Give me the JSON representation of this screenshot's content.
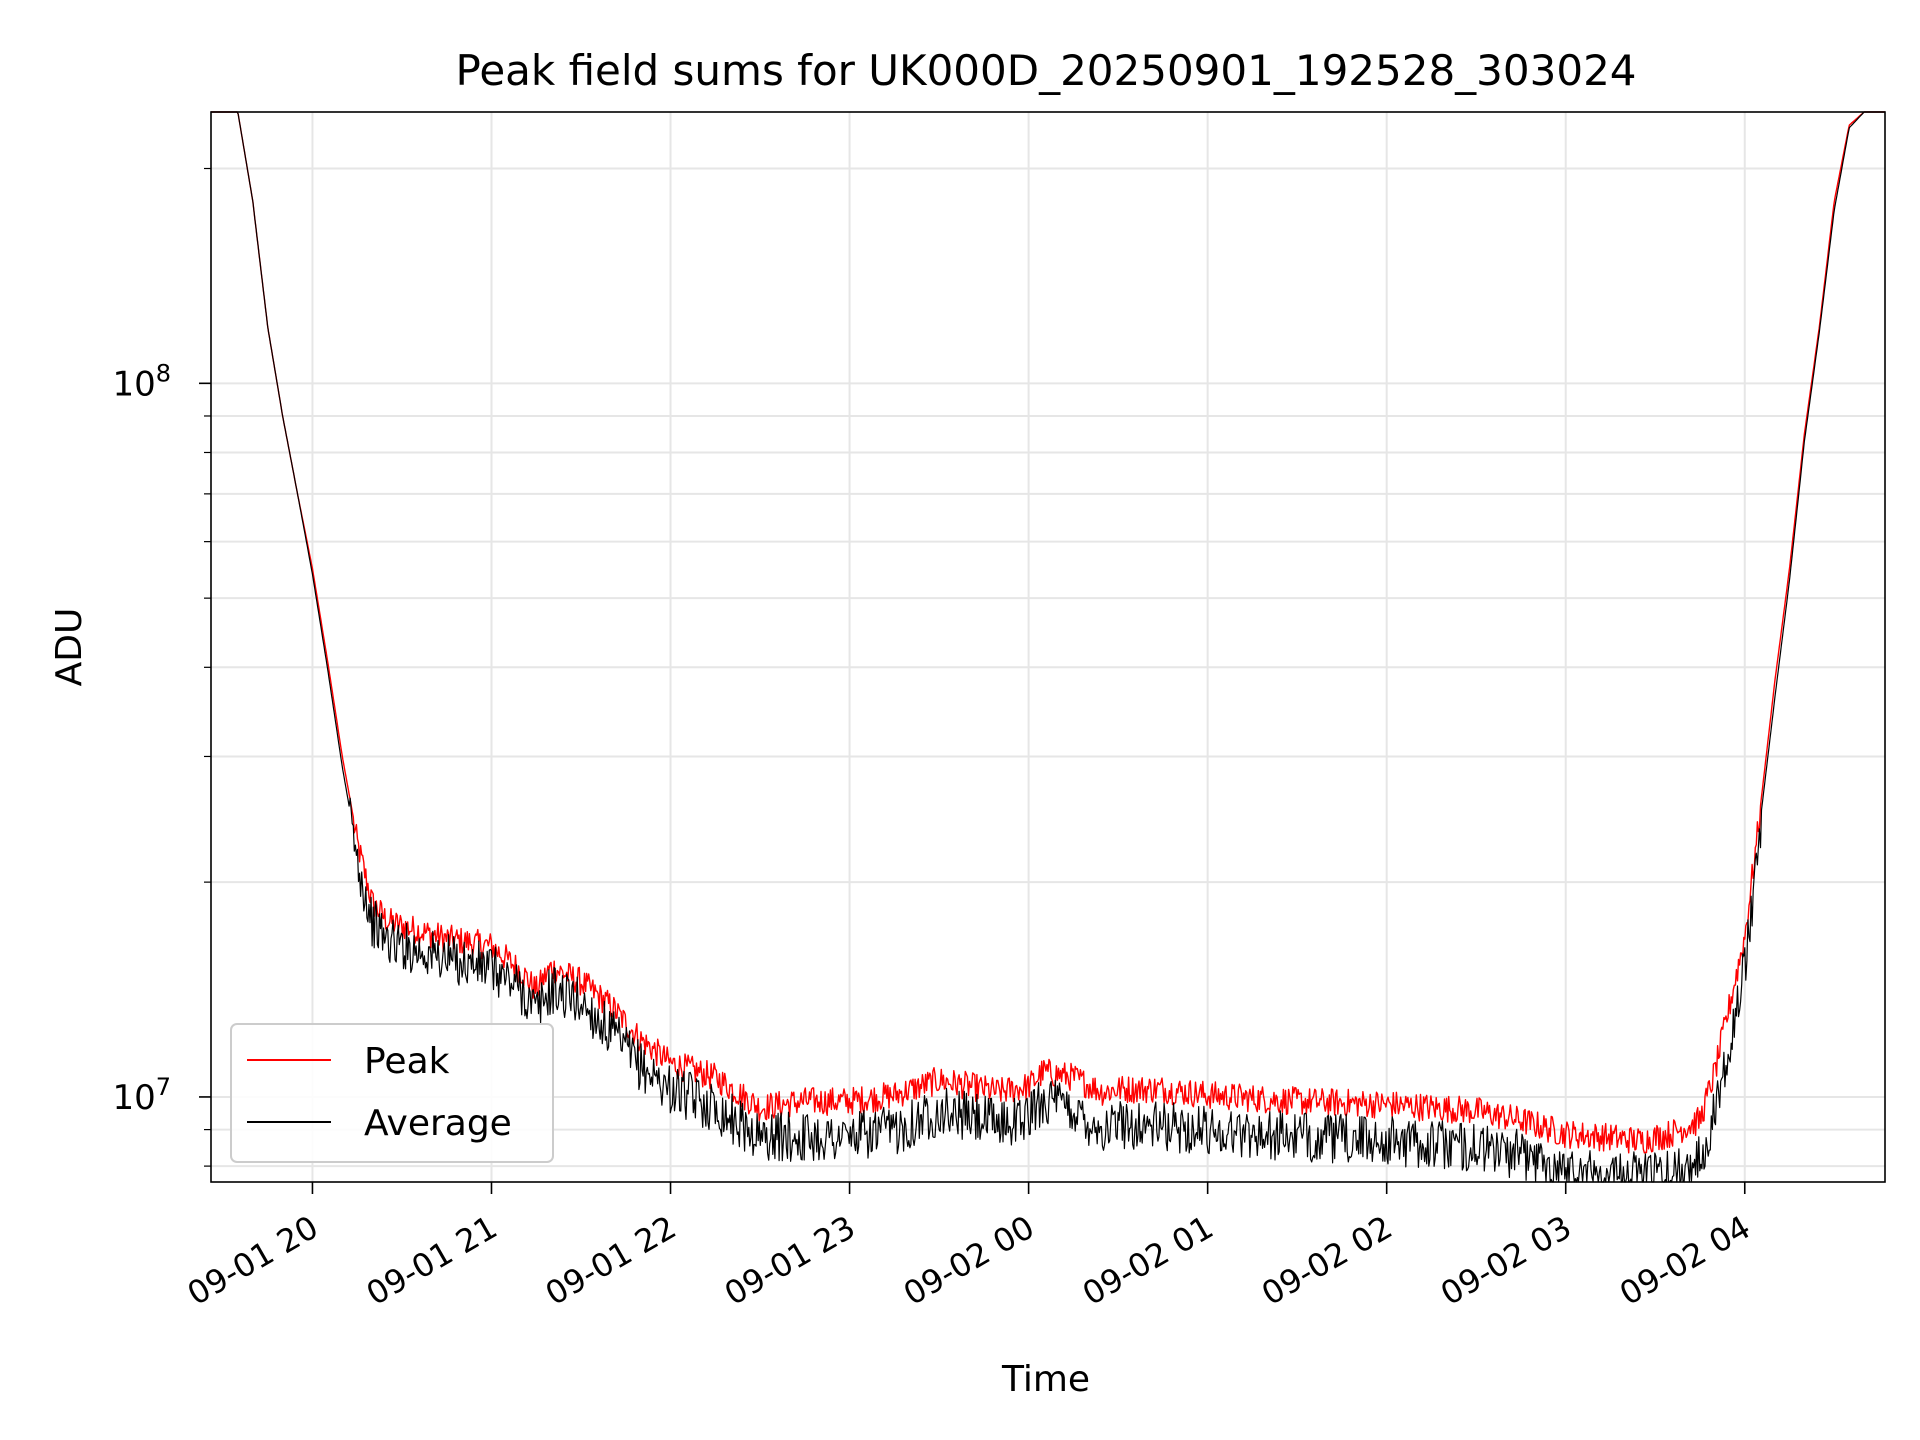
{
  "chart_data": {
    "type": "line",
    "title": "Peak field sums for UK000D_20250901_192528_303024",
    "xlabel": "Time",
    "ylabel": "ADU",
    "y_scale": "log",
    "x_range": [
      "2025-09-01 19:26",
      "2025-09-02 04:47"
    ],
    "ylim": [
      7600000,
      240000000
    ],
    "x_tick_labels": [
      "09-01 20",
      "09-01 21",
      "09-01 22",
      "09-01 23",
      "09-02 00",
      "09-02 01",
      "09-02 02",
      "09-02 03",
      "09-02 04"
    ],
    "x_ticks": [
      "2025-09-01 20:00",
      "2025-09-01 21:00",
      "2025-09-01 22:00",
      "2025-09-01 23:00",
      "2025-09-02 00:00",
      "2025-09-02 01:00",
      "2025-09-02 02:00",
      "2025-09-02 03:00",
      "2025-09-02 04:00"
    ],
    "y_tick_labels": [
      {
        "value": 10000000,
        "base": "10",
        "exp": "7"
      },
      {
        "value": 100000000,
        "base": "10",
        "exp": "8"
      }
    ],
    "grid": true,
    "legend_position": "lower-left",
    "series": [
      {
        "name": "Peak",
        "color": "#ff0000",
        "noise": 0.04,
        "x": [
          "2025-09-01 19:26",
          "2025-09-01 19:35",
          "2025-09-01 19:40",
          "2025-09-01 19:45",
          "2025-09-01 19:50",
          "2025-09-01 19:55",
          "2025-09-01 20:00",
          "2025-09-01 20:05",
          "2025-09-01 20:10",
          "2025-09-01 20:15",
          "2025-09-01 20:20",
          "2025-09-01 20:25",
          "2025-09-01 20:30",
          "2025-09-01 20:45",
          "2025-09-01 21:00",
          "2025-09-01 21:10",
          "2025-09-01 21:15",
          "2025-09-01 21:20",
          "2025-09-01 21:30",
          "2025-09-01 21:40",
          "2025-09-01 21:50",
          "2025-09-01 22:00",
          "2025-09-01 22:15",
          "2025-09-01 22:30",
          "2025-09-01 22:45",
          "2025-09-01 23:00",
          "2025-09-01 23:15",
          "2025-09-01 23:30",
          "2025-09-01 23:40",
          "2025-09-01 23:50",
          "2025-09-02 00:00",
          "2025-09-02 00:05",
          "2025-09-02 00:15",
          "2025-09-02 00:25",
          "2025-09-02 00:30",
          "2025-09-02 00:45",
          "2025-09-02 01:00",
          "2025-09-02 01:30",
          "2025-09-02 02:00",
          "2025-09-02 02:30",
          "2025-09-02 02:45",
          "2025-09-02 03:00",
          "2025-09-02 03:15",
          "2025-09-02 03:25",
          "2025-09-02 03:35",
          "2025-09-02 03:45",
          "2025-09-02 03:50",
          "2025-09-02 04:00",
          "2025-09-02 04:05",
          "2025-09-02 04:10",
          "2025-09-02 04:15",
          "2025-09-02 04:20",
          "2025-09-02 04:25",
          "2025-09-02 04:30",
          "2025-09-02 04:35",
          "2025-09-02 04:40",
          "2025-09-02 04:47"
        ],
        "y": [
          240000000,
          240000000,
          180000000,
          120000000,
          90000000,
          70000000,
          55000000,
          41000000,
          30000000,
          23000000,
          19000000,
          17900000,
          17600000,
          16900000,
          16500000,
          15200000,
          14300000,
          15400000,
          14700000,
          13600000,
          12200000,
          11300000,
          10800000,
          9800000,
          10000000,
          10000000,
          10200000,
          10700000,
          10500000,
          10300000,
          10500000,
          11000000,
          10800000,
          10300000,
          10400000,
          10400000,
          10200000,
          10000000,
          9900000,
          9700000,
          9400000,
          9000000,
          8900000,
          8800000,
          9000000,
          9400000,
          11000000,
          17000000,
          25000000,
          38000000,
          55000000,
          85000000,
          120000000,
          180000000,
          230000000,
          240000000,
          240000000
        ]
      },
      {
        "name": "Average",
        "color": "#000000",
        "noise": 0.07,
        "x": [
          "2025-09-01 19:26",
          "2025-09-01 19:35",
          "2025-09-01 19:40",
          "2025-09-01 19:45",
          "2025-09-01 19:50",
          "2025-09-01 19:55",
          "2025-09-01 20:00",
          "2025-09-01 20:05",
          "2025-09-01 20:10",
          "2025-09-01 20:15",
          "2025-09-01 20:20",
          "2025-09-01 20:25",
          "2025-09-01 20:30",
          "2025-09-01 20:45",
          "2025-09-01 21:00",
          "2025-09-01 21:10",
          "2025-09-01 21:15",
          "2025-09-01 21:20",
          "2025-09-01 21:30",
          "2025-09-01 21:40",
          "2025-09-01 21:50",
          "2025-09-01 22:00",
          "2025-09-01 22:15",
          "2025-09-01 22:30",
          "2025-09-01 22:45",
          "2025-09-01 23:00",
          "2025-09-01 23:15",
          "2025-09-01 23:30",
          "2025-09-01 23:40",
          "2025-09-01 23:50",
          "2025-09-02 00:00",
          "2025-09-02 00:05",
          "2025-09-02 00:15",
          "2025-09-02 00:25",
          "2025-09-02 00:30",
          "2025-09-02 00:45",
          "2025-09-02 01:00",
          "2025-09-02 01:30",
          "2025-09-02 02:00",
          "2025-09-02 02:30",
          "2025-09-02 02:45",
          "2025-09-02 03:00",
          "2025-09-02 03:15",
          "2025-09-02 03:25",
          "2025-09-02 03:35",
          "2025-09-02 03:45",
          "2025-09-02 03:50",
          "2025-09-02 04:00",
          "2025-09-02 04:05",
          "2025-09-02 04:10",
          "2025-09-02 04:15",
          "2025-09-02 04:20",
          "2025-09-02 04:25",
          "2025-09-02 04:30",
          "2025-09-02 04:35",
          "2025-09-02 04:40",
          "2025-09-02 04:47"
        ],
        "y": [
          240000000,
          240000000,
          180000000,
          120000000,
          90000000,
          70000000,
          54000000,
          40000000,
          29000000,
          22000000,
          18000000,
          17000000,
          16700000,
          16000000,
          15500000,
          14500000,
          13500000,
          14500000,
          13900000,
          12600000,
          11300000,
          10500000,
          9900000,
          9000000,
          9000000,
          9000000,
          9200000,
          9800000,
          9600000,
          9400000,
          9600000,
          10200000,
          9800000,
          9200000,
          9400000,
          9300000,
          9200000,
          9000000,
          8900000,
          8700000,
          8500000,
          8100000,
          8000000,
          7900000,
          8000000,
          8400000,
          9800000,
          15500000,
          24000000,
          36000000,
          53000000,
          83000000,
          118000000,
          175000000,
          228000000,
          240000000,
          240000000
        ]
      }
    ]
  }
}
